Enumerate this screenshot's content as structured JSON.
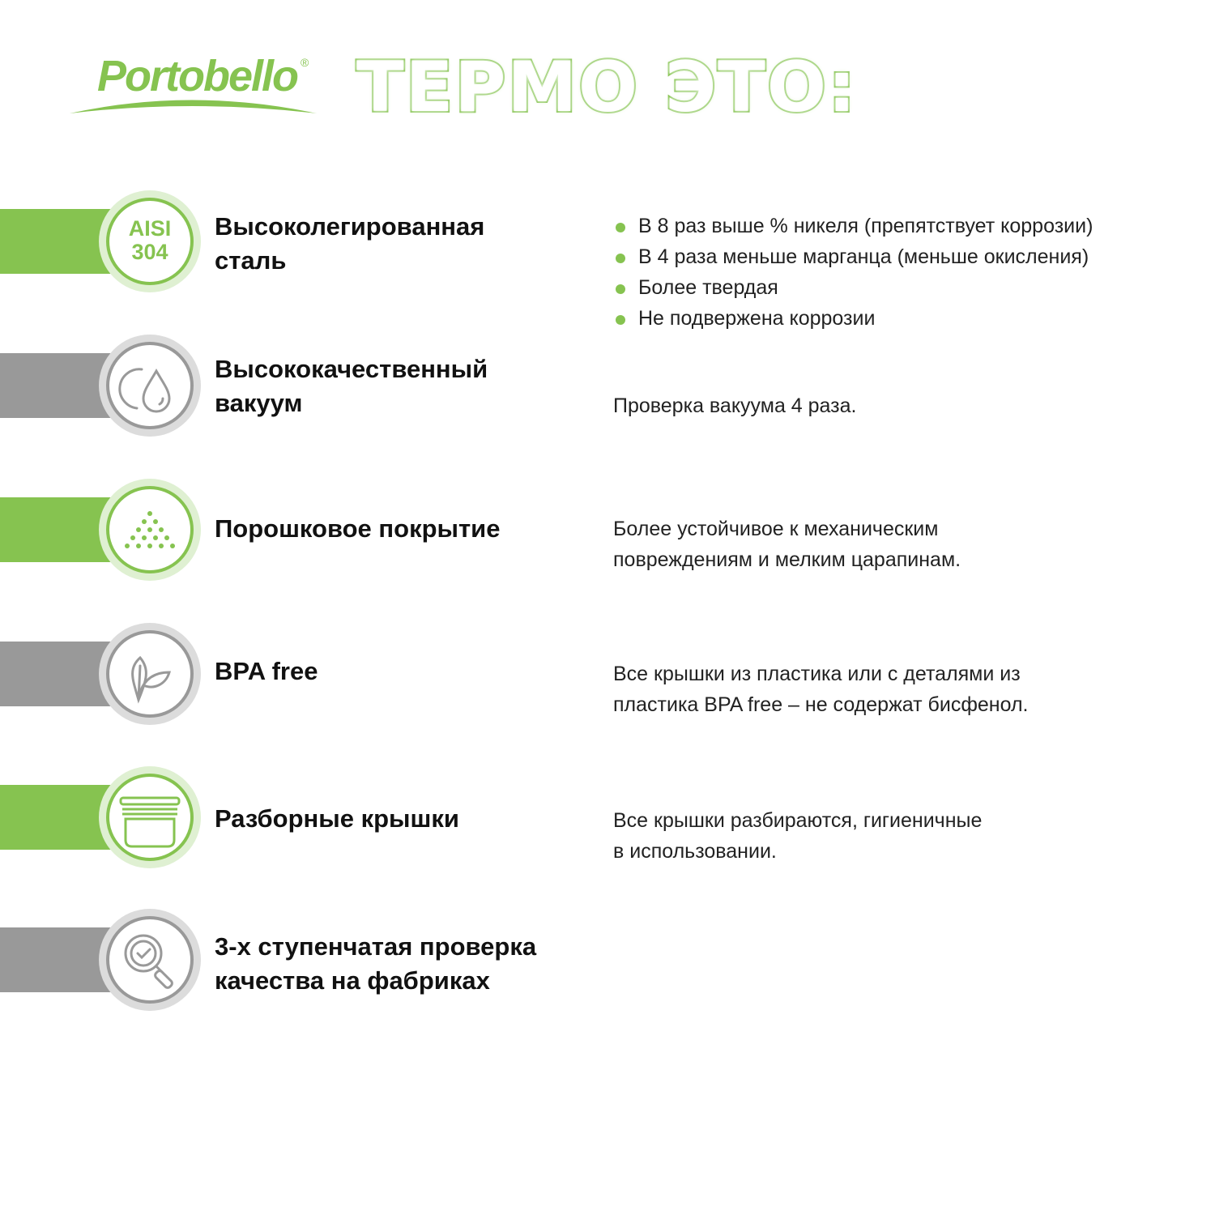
{
  "brand": {
    "logo": "Portobello",
    "registered": "®"
  },
  "title": "ТЕРМО ЭТО:",
  "colors": {
    "accent": "#86c350",
    "grey": "#999999"
  },
  "features": [
    {
      "icon": "aisi-304-badge",
      "badge_line1": "AISI",
      "badge_line2": "304",
      "heading_line1": "Высоколегированная",
      "heading_line2": "сталь",
      "bullets": [
        "В 8 раз выше % никеля (препятствует коррозии)",
        "В 4 раза меньше марганца (меньше окисления)",
        "Более твердая",
        "Не подвержена коррозии"
      ]
    },
    {
      "icon": "vacuum-drop-icon",
      "heading_line1": "Высококачественный",
      "heading_line2": "вакуум",
      "desc_line1": "Проверка вакуума 4 раза."
    },
    {
      "icon": "powder-dots-icon",
      "heading_line1": "Порошковое покрытие",
      "desc_line1": "Более устойчивое к механическим",
      "desc_line2": "повреждениям и мелким царапинам."
    },
    {
      "icon": "leaf-icon",
      "heading_line1": "BPA free",
      "desc_line1": "Все крышки из пластика или с деталями из",
      "desc_line2": "пластика BPA free – не содержат бисфенол."
    },
    {
      "icon": "lid-icon",
      "heading_line1": "Разборные крышки",
      "desc_line1": "Все крышки разбираются, гигиеничные",
      "desc_line2": "в использовании."
    },
    {
      "icon": "magnifier-check-icon",
      "heading_line1": "3-х ступенчатая проверка",
      "heading_line2": "качества на фабриках"
    }
  ]
}
